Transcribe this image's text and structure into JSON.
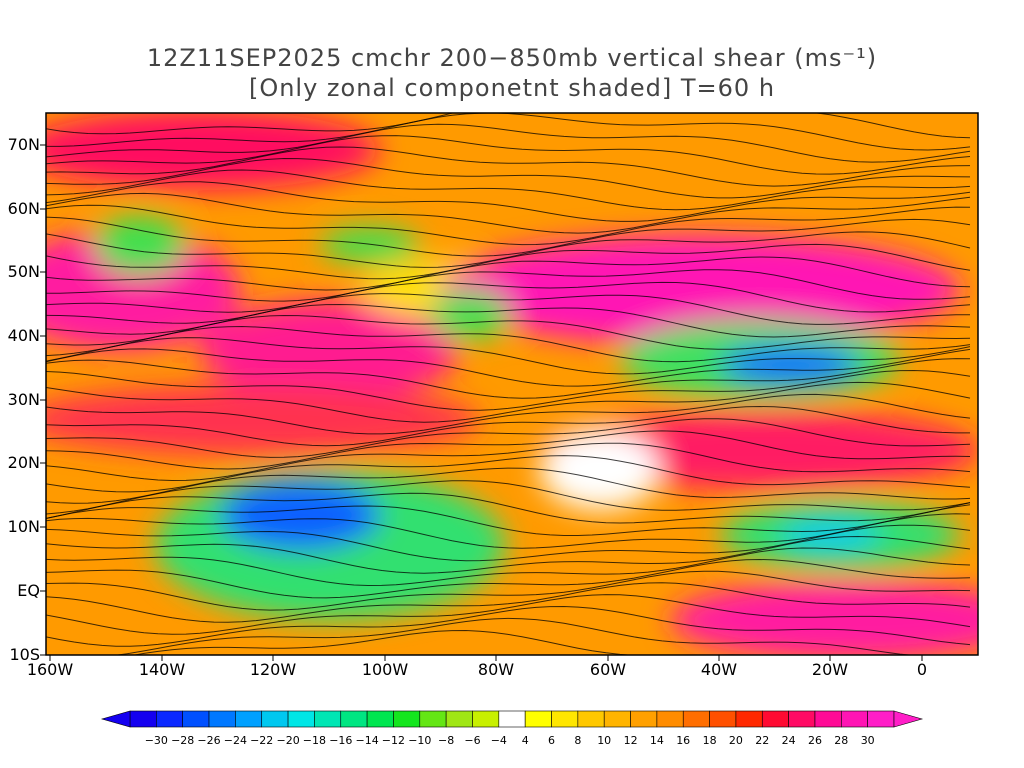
{
  "title": {
    "line1": "12Z11SEP2025 cmchr 200−850mb vertical shear (ms⁻¹)",
    "line2": "[Only zonal componetnt shaded] T=60 h"
  },
  "axes": {
    "lat_labels": [
      "70N",
      "60N",
      "50N",
      "40N",
      "30N",
      "20N",
      "10N",
      "EQ",
      "10S"
    ],
    "lon_labels": [
      "160W",
      "140W",
      "120W",
      "100W",
      "80W",
      "60W",
      "40W",
      "20W",
      "0"
    ]
  },
  "colorbar": {
    "labels": [
      "−30",
      "−28",
      "−26",
      "−24",
      "−22",
      "−20",
      "−18",
      "−16",
      "−14",
      "−12",
      "−10",
      "−8",
      "−6",
      "−4",
      "4",
      "6",
      "8",
      "10",
      "12",
      "14",
      "16",
      "18",
      "20",
      "22",
      "24",
      "26",
      "28",
      "30"
    ],
    "colors": [
      "#1400f0",
      "#0a28ff",
      "#0050ff",
      "#0078ff",
      "#00a0ff",
      "#00c8f0",
      "#00e6e6",
      "#00e6b4",
      "#00e682",
      "#00e650",
      "#14e61e",
      "#64e614",
      "#a0e614",
      "#c8f000",
      "#ffffff",
      "#ffff00",
      "#ffe600",
      "#ffc800",
      "#ffb400",
      "#ffa000",
      "#ff8c00",
      "#ff6e00",
      "#ff5000",
      "#ff2800",
      "#ff0a32",
      "#ff0a64",
      "#ff0a96",
      "#ff14b4",
      "#ff1ec8"
    ]
  }
}
